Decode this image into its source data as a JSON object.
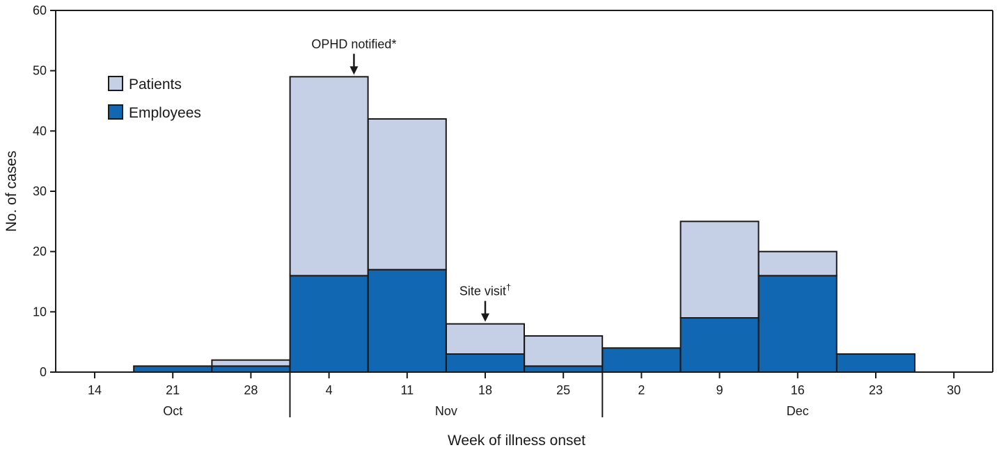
{
  "chart_data": {
    "type": "bar",
    "stacked": true,
    "categories": [
      "14",
      "21",
      "28",
      "4",
      "11",
      "18",
      "25",
      "2",
      "9",
      "16",
      "23",
      "30"
    ],
    "month_labels": [
      "Oct",
      "Nov",
      "Dec"
    ],
    "month_spans": [
      {
        "label": "Oct",
        "first_index": 0,
        "last_index": 2
      },
      {
        "label": "Nov",
        "first_index": 3,
        "last_index": 6
      },
      {
        "label": "Dec",
        "first_index": 7,
        "last_index": 11
      }
    ],
    "series": [
      {
        "name": "Employees",
        "color": "#1167b1",
        "values": [
          0,
          1,
          1,
          16,
          17,
          3,
          1,
          4,
          9,
          16,
          3,
          0
        ]
      },
      {
        "name": "Patients",
        "color": "#c5cfe6",
        "values": [
          0,
          0,
          1,
          33,
          25,
          5,
          5,
          0,
          16,
          4,
          0,
          0
        ]
      }
    ],
    "xlabel": "Week of illness onset",
    "ylabel": "No. of cases",
    "ylim": [
      0,
      60
    ],
    "yticks": [
      0,
      10,
      20,
      30,
      40,
      50,
      60
    ],
    "grid": false,
    "legend_position": "top-left",
    "legend_order": [
      "Patients",
      "Employees"
    ],
    "annotations": [
      {
        "text": "OPHD notified",
        "superscript": "*",
        "x_category_index": 3,
        "x_fraction": 0.82
      },
      {
        "text": "Site visit",
        "superscript": "†",
        "x_category_index": 5,
        "x_fraction": 0.5
      }
    ]
  }
}
